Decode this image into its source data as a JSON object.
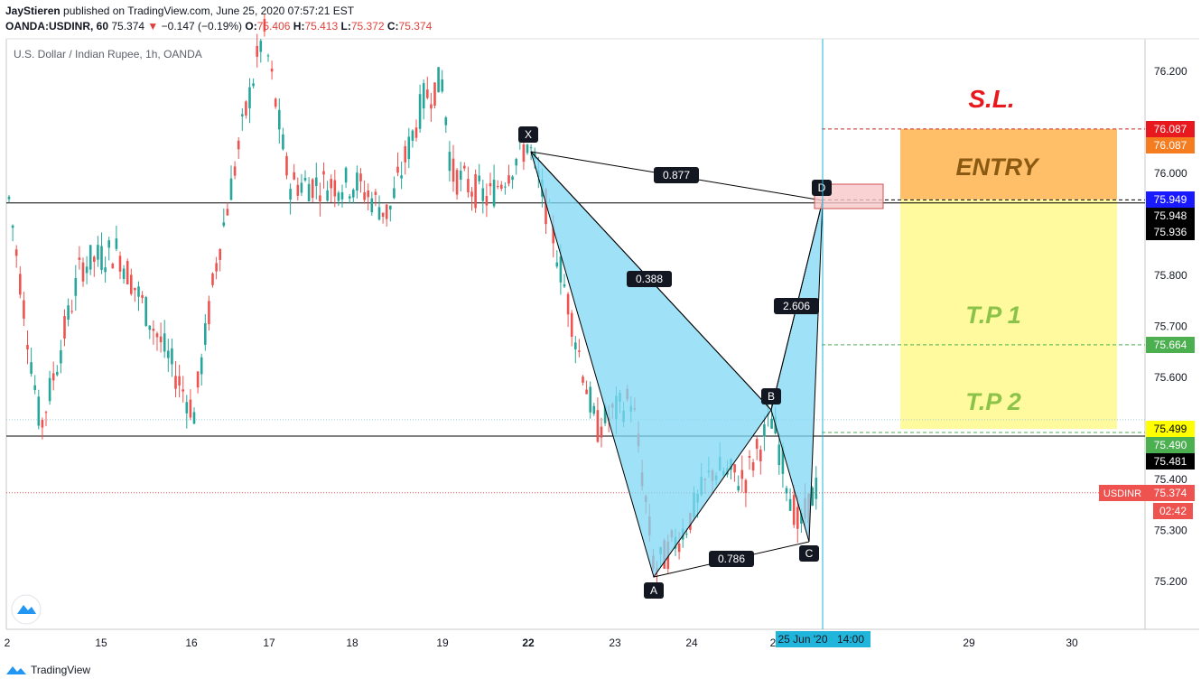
{
  "header": {
    "line1_user": "JayStieren",
    "line1_rest": "published on TradingView.com, June 25, 2020 07:57:21 EST",
    "symbol": "OANDA:USDINR, 60",
    "last": "75.374",
    "arrow": "▼",
    "change": "−0.147 (−0.19%)",
    "o_label": "O:",
    "o_val": "75.406",
    "h_label": "H:",
    "h_val": "75.413",
    "l_label": "L:",
    "l_val": "75.372",
    "c_label": "C:",
    "c_val": "75.374"
  },
  "footer": {
    "brand": "TradingView"
  },
  "chart_data": {
    "type": "candlestick",
    "title": "U.S. Dollar / Indian Rupee, 1h, OANDA",
    "ylim": [
      75.1,
      76.26
    ],
    "y_ticks": [
      "76.200",
      "76.000",
      "75.800",
      "75.700",
      "75.600",
      "75.400",
      "75.300",
      "75.200"
    ],
    "x_ticks": [
      "2",
      "15",
      "16",
      "17",
      "18",
      "19",
      "22",
      "23",
      "24",
      "2",
      "29",
      "30"
    ],
    "time_label": "25 Jun '20",
    "time_label2": "14:00",
    "pattern_points": [
      {
        "label": "X",
        "price": 76.07
      },
      {
        "label": "A",
        "price": 75.215
      },
      {
        "label": "B",
        "price": 75.53
      },
      {
        "label": "C",
        "price": 75.285
      },
      {
        "label": "D",
        "price": 75.95
      }
    ],
    "ratios": [
      "0.877",
      "0.388",
      "2.606",
      "0.786"
    ],
    "zones": {
      "sl": "S.L.",
      "entry": "ENTRY",
      "tp1": "T.P 1",
      "tp2": "T.P 2"
    },
    "price_labels": [
      {
        "text": "76.087",
        "price": 76.087,
        "color": "#e8181f"
      },
      {
        "text": "76.087",
        "price": 76.087,
        "color": "#f57c1f"
      },
      {
        "text": "75.949",
        "price": 75.949,
        "color": "#1a1aff"
      },
      {
        "text": "75.948",
        "price": 75.948,
        "color": "#000000"
      },
      {
        "text": "75.936",
        "price": 75.936,
        "color": "#000000"
      },
      {
        "text": "75.664",
        "price": 75.664,
        "color": "#4caf50"
      },
      {
        "text": "75.499",
        "price": 75.499,
        "color": "#ffff00"
      },
      {
        "text": "75.490",
        "price": 75.49,
        "color": "#4caf50"
      },
      {
        "text": "75.481",
        "price": 75.481,
        "color": "#000000"
      },
      {
        "text": "75.374",
        "price": 75.374,
        "color": "#ef5350"
      }
    ],
    "symbol_tag": "USDINR",
    "countdown": "02:42",
    "colors": {
      "up": "#26a69a",
      "down": "#ef5350",
      "pattern_fill": "#7fd8f5",
      "entry": "#ffbf69",
      "tp": "#fffa9e",
      "sl_text": "#e8181f",
      "tp_text": "#8bc34a"
    }
  }
}
